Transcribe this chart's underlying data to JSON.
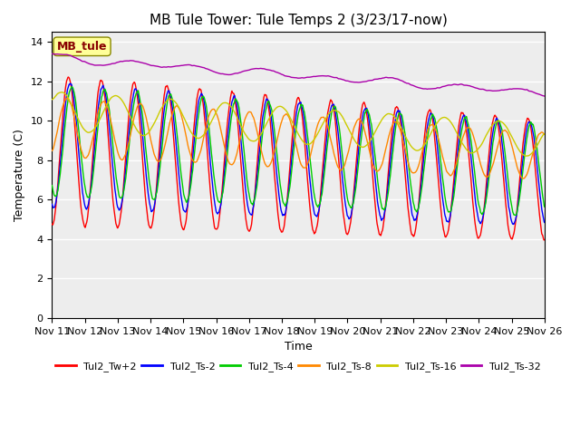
{
  "title": "MB Tule Tower: Tule Temps 2 (3/23/17-now)",
  "xlabel": "Time",
  "ylabel": "Temperature (C)",
  "ylim": [
    0,
    14.5
  ],
  "yticks": [
    0,
    2,
    4,
    6,
    8,
    10,
    12,
    14
  ],
  "xtick_labels": [
    "Nov 11",
    "Nov 12",
    "Nov 13",
    "Nov 14",
    "Nov 15",
    "Nov 16",
    "Nov 17",
    "Nov 18",
    "Nov 19",
    "Nov 20",
    "Nov 21",
    "Nov 22",
    "Nov 23",
    "Nov 24",
    "Nov 25",
    "Nov 26"
  ],
  "legend_label": "MB_tule",
  "series_labels": [
    "Tul2_Tw+2",
    "Tul2_Ts-2",
    "Tul2_Ts-4",
    "Tul2_Ts-8",
    "Tul2_Ts-16",
    "Tul2_Ts-32"
  ],
  "series_colors": [
    "#ff0000",
    "#0000ff",
    "#00cc00",
    "#ff8800",
    "#cccc00",
    "#aa00aa"
  ],
  "background_color": "#ffffff",
  "plot_bg_color": "#d8d8d8",
  "title_fontsize": 11,
  "axis_fontsize": 9,
  "tick_fontsize": 8,
  "band_colors": [
    "#ffffff",
    "#d0d0d0"
  ],
  "legend_annotation_color": "#880000",
  "legend_annotation_bg": "#ffff99",
  "legend_annotation_edge": "#888800"
}
